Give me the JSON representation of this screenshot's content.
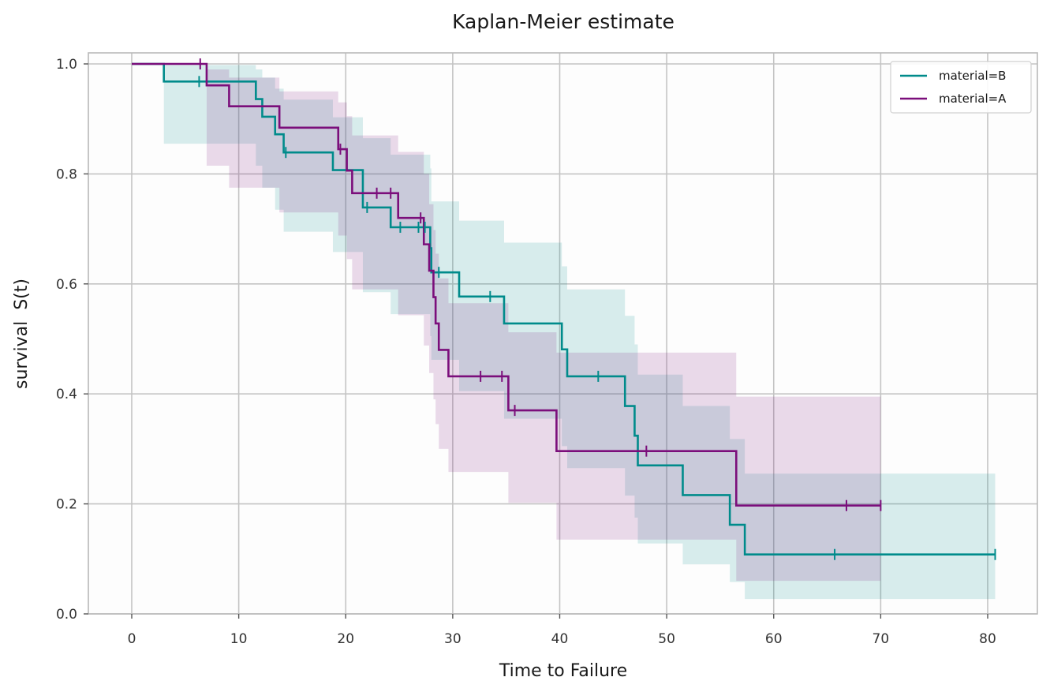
{
  "chart_data": {
    "type": "line",
    "subtype": "kaplan-meier step",
    "title": "Kaplan-Meier estimate",
    "xlabel": "Time to Failure",
    "ylabel": "survival  S(t)",
    "xlim": [
      -4,
      85
    ],
    "ylim": [
      0,
      1.02
    ],
    "x_ticks": [
      0,
      10,
      20,
      30,
      40,
      50,
      60,
      70,
      80
    ],
    "y_ticks": [
      0.0,
      0.2,
      0.4,
      0.6,
      0.8,
      1.0
    ],
    "x_tick_labels": [
      "0",
      "10",
      "20",
      "30",
      "40",
      "50",
      "60",
      "70",
      "80"
    ],
    "y_tick_labels": [
      "0.0",
      "0.2",
      "0.4",
      "0.6",
      "0.8",
      "1.0"
    ],
    "grid": true,
    "legend_position": "top-right",
    "series": [
      {
        "name": "material=B",
        "color": "#008b8b",
        "steps": [
          [
            0,
            1.0
          ],
          [
            3.0,
            0.968
          ],
          [
            11.6,
            0.936
          ],
          [
            12.2,
            0.904
          ],
          [
            13.4,
            0.872
          ],
          [
            14.2,
            0.839
          ],
          [
            18.8,
            0.807
          ],
          [
            21.6,
            0.739
          ],
          [
            24.2,
            0.703
          ],
          [
            27.9,
            0.665
          ],
          [
            28.0,
            0.621
          ],
          [
            30.6,
            0.577
          ],
          [
            34.8,
            0.528
          ],
          [
            40.2,
            0.481
          ],
          [
            40.7,
            0.432
          ],
          [
            46.1,
            0.378
          ],
          [
            47.0,
            0.324
          ],
          [
            47.3,
            0.27
          ],
          [
            51.5,
            0.216
          ],
          [
            55.9,
            0.162
          ],
          [
            57.3,
            0.108
          ],
          [
            80.7,
            0.108
          ]
        ],
        "censored": [
          [
            6.3,
            0.968
          ],
          [
            14.4,
            0.839
          ],
          [
            22.0,
            0.739
          ],
          [
            25.1,
            0.703
          ],
          [
            26.8,
            0.703
          ],
          [
            27.4,
            0.703
          ],
          [
            28.7,
            0.621
          ],
          [
            33.5,
            0.577
          ],
          [
            43.6,
            0.432
          ],
          [
            65.7,
            0.108
          ],
          [
            80.7,
            0.108
          ]
        ],
        "ci_upper": [
          [
            0,
            1.0
          ],
          [
            3.0,
            0.998
          ],
          [
            11.6,
            0.99
          ],
          [
            12.2,
            0.975
          ],
          [
            13.4,
            0.955
          ],
          [
            14.2,
            0.935
          ],
          [
            18.8,
            0.903
          ],
          [
            21.6,
            0.865
          ],
          [
            24.2,
            0.835
          ],
          [
            27.9,
            0.81
          ],
          [
            28.0,
            0.75
          ],
          [
            30.6,
            0.715
          ],
          [
            34.8,
            0.675
          ],
          [
            40.2,
            0.632
          ],
          [
            40.7,
            0.59
          ],
          [
            46.1,
            0.542
          ],
          [
            47.0,
            0.49
          ],
          [
            47.3,
            0.435
          ],
          [
            51.5,
            0.378
          ],
          [
            55.9,
            0.318
          ],
          [
            57.3,
            0.255
          ],
          [
            80.7,
            0.255
          ]
        ],
        "ci_lower": [
          [
            0,
            1.0
          ],
          [
            3.0,
            0.855
          ],
          [
            11.6,
            0.815
          ],
          [
            12.2,
            0.775
          ],
          [
            13.4,
            0.735
          ],
          [
            14.2,
            0.695
          ],
          [
            18.8,
            0.658
          ],
          [
            21.6,
            0.585
          ],
          [
            24.2,
            0.545
          ],
          [
            27.9,
            0.505
          ],
          [
            28.0,
            0.462
          ],
          [
            30.6,
            0.405
          ],
          [
            34.8,
            0.355
          ],
          [
            40.2,
            0.305
          ],
          [
            40.7,
            0.265
          ],
          [
            46.1,
            0.215
          ],
          [
            47.0,
            0.175
          ],
          [
            47.3,
            0.128
          ],
          [
            51.5,
            0.09
          ],
          [
            55.9,
            0.058
          ],
          [
            57.3,
            0.027
          ],
          [
            80.7,
            0.027
          ]
        ]
      },
      {
        "name": "material=A",
        "color": "#7b0e7b",
        "steps": [
          [
            0,
            1.0
          ],
          [
            7.0,
            0.961
          ],
          [
            9.1,
            0.923
          ],
          [
            13.8,
            0.884
          ],
          [
            19.3,
            0.845
          ],
          [
            20.1,
            0.806
          ],
          [
            20.6,
            0.765
          ],
          [
            24.9,
            0.72
          ],
          [
            27.3,
            0.672
          ],
          [
            27.8,
            0.624
          ],
          [
            28.2,
            0.576
          ],
          [
            28.4,
            0.528
          ],
          [
            28.7,
            0.48
          ],
          [
            29.6,
            0.432
          ],
          [
            35.2,
            0.37
          ],
          [
            39.7,
            0.296
          ],
          [
            56.5,
            0.197
          ],
          [
            70.0,
            0.197
          ]
        ],
        "censored": [
          [
            6.4,
            1.0
          ],
          [
            19.5,
            0.845
          ],
          [
            22.9,
            0.765
          ],
          [
            24.2,
            0.765
          ],
          [
            27.0,
            0.72
          ],
          [
            32.6,
            0.432
          ],
          [
            34.6,
            0.432
          ],
          [
            35.8,
            0.37
          ],
          [
            48.1,
            0.296
          ],
          [
            66.8,
            0.197
          ],
          [
            70.0,
            0.197
          ]
        ],
        "ci_upper": [
          [
            0,
            1.0
          ],
          [
            7.0,
            0.99
          ],
          [
            9.1,
            0.975
          ],
          [
            13.8,
            0.95
          ],
          [
            19.3,
            0.93
          ],
          [
            20.1,
            0.905
          ],
          [
            20.6,
            0.87
          ],
          [
            24.9,
            0.84
          ],
          [
            27.3,
            0.8
          ],
          [
            27.8,
            0.745
          ],
          [
            28.2,
            0.698
          ],
          [
            28.4,
            0.655
          ],
          [
            28.7,
            0.61
          ],
          [
            29.6,
            0.565
          ],
          [
            35.2,
            0.512
          ],
          [
            39.7,
            0.475
          ],
          [
            56.5,
            0.395
          ],
          [
            70.0,
            0.395
          ]
        ],
        "ci_lower": [
          [
            0,
            1.0
          ],
          [
            7.0,
            0.815
          ],
          [
            9.1,
            0.775
          ],
          [
            13.8,
            0.73
          ],
          [
            19.3,
            0.688
          ],
          [
            20.1,
            0.645
          ],
          [
            20.6,
            0.59
          ],
          [
            24.9,
            0.543
          ],
          [
            27.3,
            0.488
          ],
          [
            27.8,
            0.438
          ],
          [
            28.2,
            0.39
          ],
          [
            28.4,
            0.345
          ],
          [
            28.7,
            0.3
          ],
          [
            29.6,
            0.258
          ],
          [
            35.2,
            0.202
          ],
          [
            39.7,
            0.135
          ],
          [
            56.5,
            0.06
          ],
          [
            70.0,
            0.06
          ]
        ]
      }
    ]
  }
}
